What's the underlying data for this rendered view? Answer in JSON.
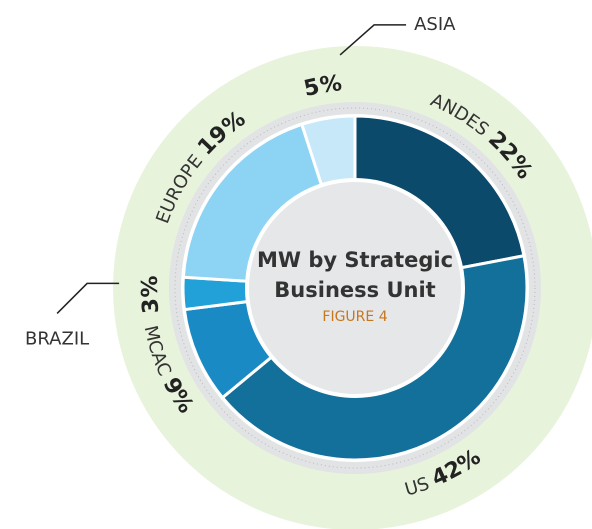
{
  "chart_data": {
    "type": "donut",
    "title": "MW by Strategic Business Unit",
    "subtitle": "FIGURE 4",
    "categories": [
      "ANDES",
      "US",
      "MCAC",
      "BRAZIL",
      "EUROPE",
      "ASIA"
    ],
    "values": [
      22,
      42,
      9,
      3,
      19,
      5
    ],
    "value_labels": [
      "22%",
      "42%",
      "9%",
      "3%",
      "19%",
      "5%"
    ],
    "colors": [
      "#0b4a6b",
      "#12709a",
      "#1a8ac4",
      "#22a0d8",
      "#8dd3f3",
      "#c6e8f8"
    ]
  }
}
